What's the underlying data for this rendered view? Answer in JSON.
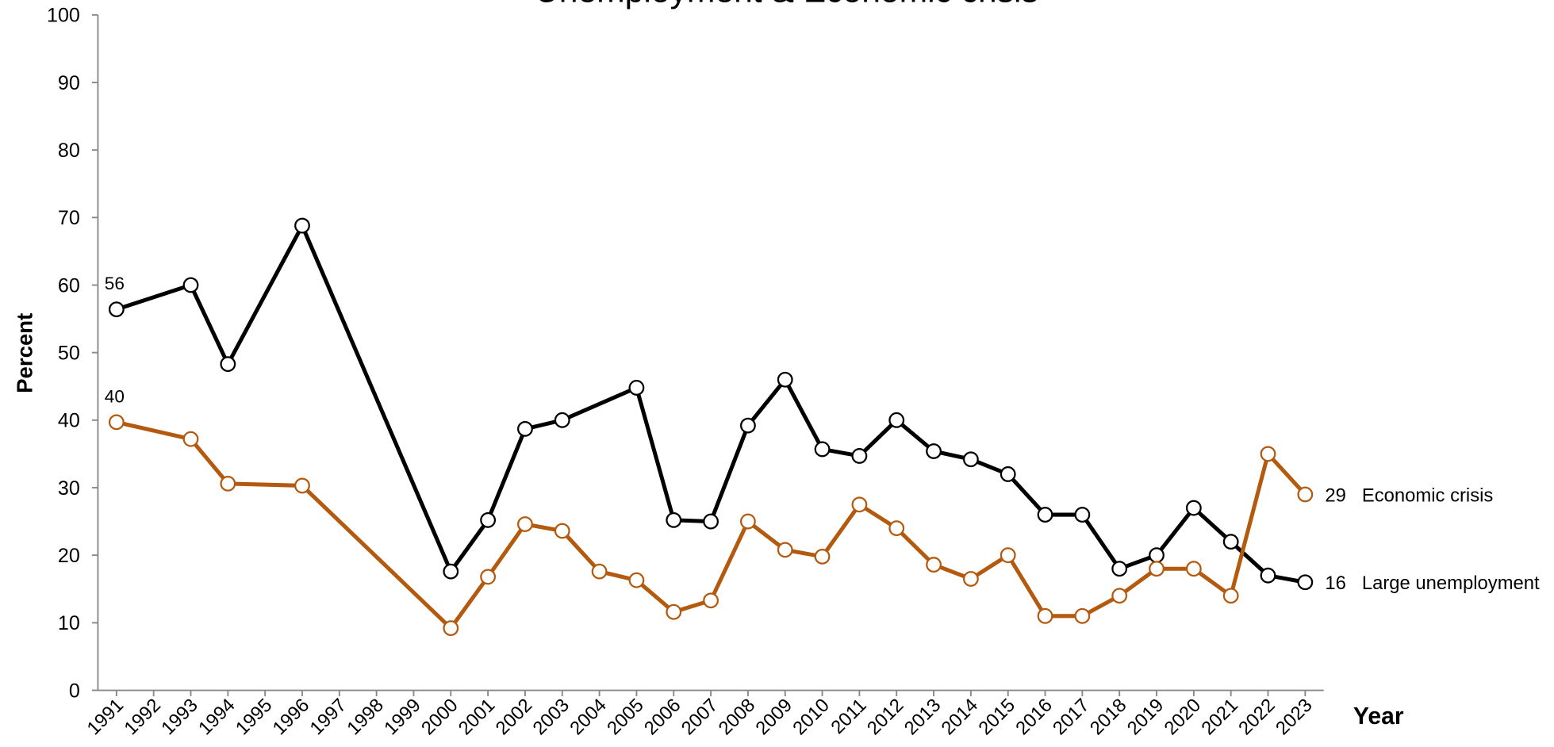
{
  "chart_data": {
    "type": "line",
    "title": "Unemployment & Economic crisis",
    "ylabel": "Percent",
    "xlabel": "Year",
    "xlim": [
      1990.5,
      2023.5
    ],
    "xticks": [
      1991,
      1992,
      1993,
      1994,
      1995,
      1996,
      1997,
      1998,
      1999,
      2000,
      2001,
      2002,
      2003,
      2004,
      2005,
      2006,
      2007,
      2008,
      2009,
      2010,
      2011,
      2012,
      2013,
      2014,
      2015,
      2016,
      2017,
      2018,
      2019,
      2020,
      2021,
      2022,
      2023
    ],
    "ylim": [
      0,
      100
    ],
    "yticks": [
      0,
      10,
      20,
      30,
      40,
      50,
      60,
      70,
      80,
      90,
      100
    ],
    "series": [
      {
        "name": "Large unemployment",
        "color": "#000000",
        "x": [
          1991,
          1993,
          1994,
          1996,
          2000,
          2001,
          2002,
          2003,
          2005,
          2006,
          2007,
          2008,
          2009,
          2010,
          2011,
          2012,
          2013,
          2014,
          2015,
          2016,
          2017,
          2018,
          2019,
          2020,
          2021,
          2022,
          2023
        ],
        "values": [
          56.4,
          60,
          48.3,
          68.8,
          17.6,
          25.2,
          38.7,
          40,
          44.8,
          25.2,
          25,
          39.2,
          46,
          35.7,
          34.7,
          40,
          35.4,
          34.2,
          32,
          26,
          26,
          18,
          20,
          27,
          22,
          17,
          16
        ],
        "value_labels": [
          "56",
          null,
          null,
          null,
          null,
          null,
          null,
          null,
          null,
          null,
          null,
          null,
          null,
          null,
          null,
          null,
          null,
          null,
          null,
          null,
          null,
          null,
          null,
          null,
          null,
          null,
          "16"
        ]
      },
      {
        "name": "Economic crisis",
        "color": "#b35a0e",
        "x": [
          1991,
          1993,
          1994,
          1996,
          2000,
          2001,
          2002,
          2003,
          2004,
          2005,
          2006,
          2007,
          2008,
          2009,
          2010,
          2011,
          2012,
          2013,
          2014,
          2015,
          2016,
          2017,
          2018,
          2019,
          2020,
          2021,
          2022,
          2023
        ],
        "values": [
          39.7,
          37.2,
          30.6,
          30.3,
          9.2,
          16.8,
          24.6,
          23.6,
          17.6,
          16.3,
          11.6,
          13.3,
          25,
          20.8,
          19.8,
          27.5,
          24,
          18.6,
          16.5,
          20,
          11,
          11,
          14,
          18,
          18,
          14,
          35,
          29
        ],
        "value_labels": [
          "40",
          null,
          null,
          null,
          null,
          null,
          null,
          null,
          null,
          null,
          null,
          null,
          null,
          null,
          null,
          null,
          null,
          null,
          null,
          null,
          null,
          null,
          null,
          null,
          null,
          null,
          null,
          "29"
        ]
      }
    ]
  }
}
